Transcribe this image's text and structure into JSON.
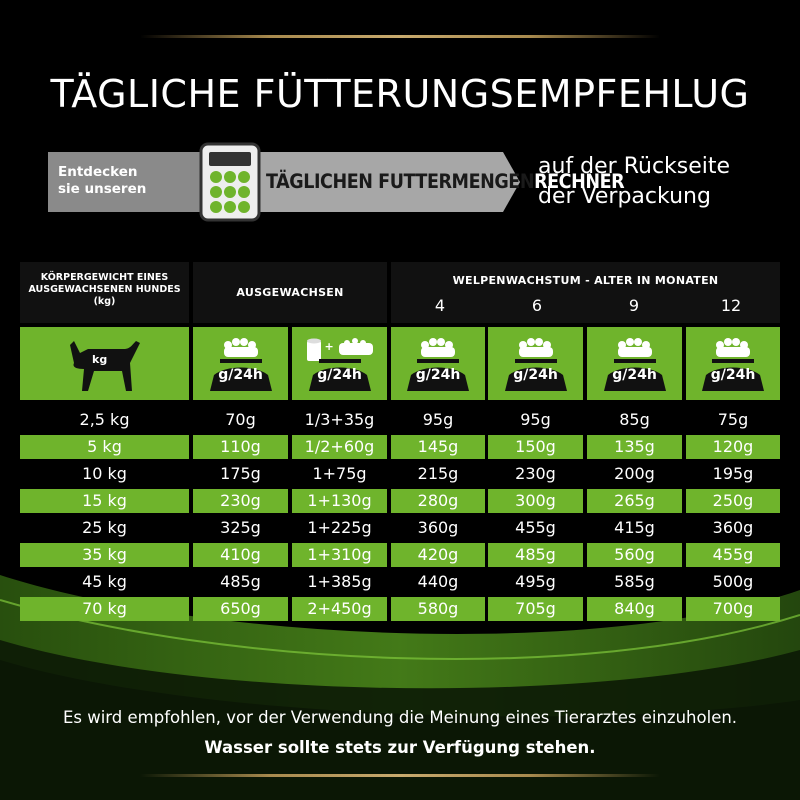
{
  "title": "TÄGLICHE FÜTTERUNGSEMPFEHLUG",
  "banner": {
    "discover_line1": "Entdecken",
    "discover_line2": "sie unseren",
    "calculator_strong": "TÄGLICHEN FUTTERMENGEN",
    "calculator_light": "RECHNER",
    "right_line1": "auf der Rückseite",
    "right_line2": "der Verpackung"
  },
  "table": {
    "header_body": "KÖRPERGEWICHT EINES AUSGEWACHSENEN HUNDES (kg)",
    "header_adult": "AUSGEWACHSEN",
    "header_puppy": "WELPENWACHSTUM - ALTER IN MONATEN",
    "ages": [
      "4",
      "6",
      "9",
      "12"
    ],
    "dog_label": "kg",
    "bowl_label": "g/24h",
    "can_plus": "+",
    "rows": [
      {
        "weight": "2,5 kg",
        "adult": "70g",
        "mix": "1/3+35g",
        "m4": "95g",
        "m6": "95g",
        "m9": "85g",
        "m12": "75g"
      },
      {
        "weight": "5 kg",
        "adult": "110g",
        "mix": "1/2+60g",
        "m4": "145g",
        "m6": "150g",
        "m9": "135g",
        "m12": "120g"
      },
      {
        "weight": "10 kg",
        "adult": "175g",
        "mix": "1+75g",
        "m4": "215g",
        "m6": "230g",
        "m9": "200g",
        "m12": "195g"
      },
      {
        "weight": "15 kg",
        "adult": "230g",
        "mix": "1+130g",
        "m4": "280g",
        "m6": "300g",
        "m9": "265g",
        "m12": "250g"
      },
      {
        "weight": "25 kg",
        "adult": "325g",
        "mix": "1+225g",
        "m4": "360g",
        "m6": "455g",
        "m9": "415g",
        "m12": "360g"
      },
      {
        "weight": "35 kg",
        "adult": "410g",
        "mix": "1+310g",
        "m4": "420g",
        "m6": "485g",
        "m9": "560g",
        "m12": "455g"
      },
      {
        "weight": "45 kg",
        "adult": "485g",
        "mix": "1+385g",
        "m4": "440g",
        "m6": "495g",
        "m9": "585g",
        "m12": "500g"
      },
      {
        "weight": "70 kg",
        "adult": "650g",
        "mix": "2+450g",
        "m4": "580g",
        "m6": "705g",
        "m9": "840g",
        "m12": "700g"
      }
    ]
  },
  "note_vet": "Es wird empfohlen, vor der Verwendung die Meinung eines Tierarztes einzuholen.",
  "note_water": "Wasser sollte stets zur Verfügung stehen.",
  "colors": {
    "accent_green": "#6fb42c",
    "header_bg": "#111111",
    "gold": "#c8aa6e",
    "banner_grey": "#a7a7a7"
  }
}
